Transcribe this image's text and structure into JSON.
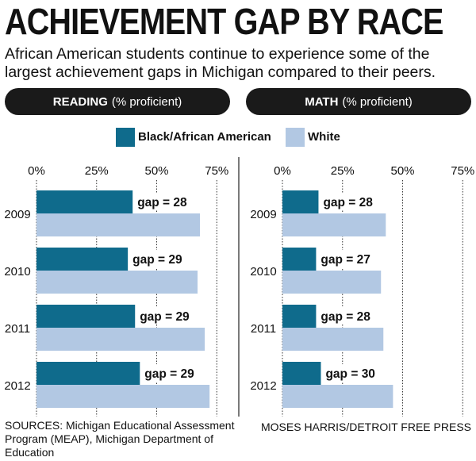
{
  "title": "ACHIEVEMENT GAP BY RACE",
  "subtitle": "African American students continue to experience some of the largest achievement gaps in Michigan compared to their peers.",
  "panels": {
    "reading": {
      "label_bold": "READING",
      "label_rest": "(% proficient)"
    },
    "math": {
      "label_bold": "MATH",
      "label_rest": "(% proficient)"
    }
  },
  "legend": [
    {
      "label": "Black/African American",
      "color": "#0f6b8c"
    },
    {
      "label": "White",
      "color": "#b2c8e3"
    }
  ],
  "chart_data": [
    {
      "type": "bar",
      "orientation": "horizontal",
      "title": "READING (% proficient)",
      "categories": [
        "2009",
        "2010",
        "2011",
        "2012"
      ],
      "series": [
        {
          "name": "Black/African American",
          "values": [
            40,
            38,
            41,
            43
          ],
          "color": "#0f6b8c"
        },
        {
          "name": "White",
          "values": [
            68,
            67,
            70,
            72
          ],
          "color": "#b2c8e3"
        }
      ],
      "annotations": [
        "gap = 28",
        "gap = 29",
        "gap = 29",
        "gap = 29"
      ],
      "xlim": [
        0,
        75
      ],
      "xticks": [
        "0%",
        "25%",
        "50%",
        "75%"
      ],
      "grid": true
    },
    {
      "type": "bar",
      "orientation": "horizontal",
      "title": "MATH (% proficient)",
      "categories": [
        "2009",
        "2010",
        "2011",
        "2012"
      ],
      "series": [
        {
          "name": "Black/African American",
          "values": [
            15,
            14,
            14,
            16
          ],
          "color": "#0f6b8c"
        },
        {
          "name": "White",
          "values": [
            43,
            41,
            42,
            46
          ],
          "color": "#b2c8e3"
        }
      ],
      "annotations": [
        "gap = 28",
        "gap = 27",
        "gap = 28",
        "gap = 30"
      ],
      "xlim": [
        0,
        75
      ],
      "xticks": [
        "0%",
        "25%",
        "50%",
        "75%"
      ],
      "grid": true
    }
  ],
  "sources": "SOURCES: Michigan Educational Assessment Program (MEAP), Michigan Department of Education",
  "credit": "MOSES HARRIS/DETROIT FREE PRESS"
}
